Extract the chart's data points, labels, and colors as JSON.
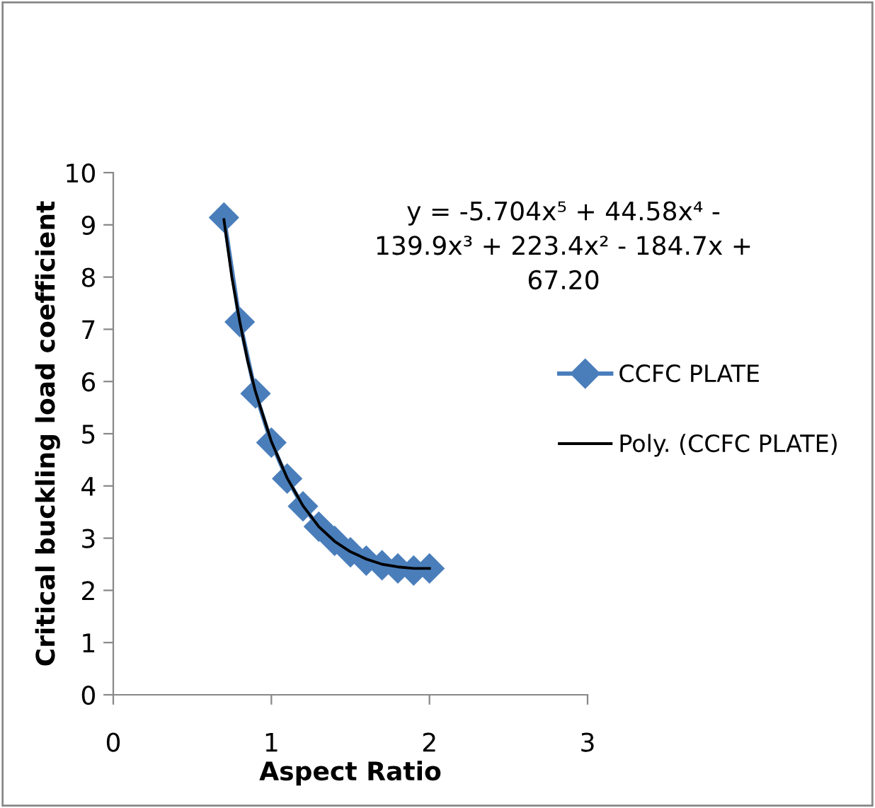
{
  "chart_data": {
    "type": "line",
    "xlabel": "Aspect Ratio",
    "ylabel": "Critical buckling load coefficient",
    "x": [
      0.7,
      0.8,
      0.9,
      1.0,
      1.1,
      1.2,
      1.3,
      1.4,
      1.5,
      1.6,
      1.7,
      1.8,
      1.9,
      2.0
    ],
    "series": [
      {
        "name": "CCFC PLATE",
        "color": "#4a7ebb",
        "marker": "diamond",
        "values": [
          9.14,
          7.14,
          5.77,
          4.83,
          4.14,
          3.61,
          3.22,
          2.95,
          2.73,
          2.57,
          2.48,
          2.42,
          2.38,
          2.42
        ]
      },
      {
        "name": "Poly. (CCFC PLATE)",
        "color": "#000000",
        "marker": "none",
        "x": [
          0.7,
          0.75,
          0.8,
          0.85,
          0.9,
          1.0,
          1.1,
          1.2,
          1.3,
          1.4,
          1.5,
          1.6,
          1.7,
          1.8,
          1.9,
          2.0
        ],
        "values": [
          9.1,
          8.0,
          7.15,
          6.4,
          5.8,
          4.85,
          4.15,
          3.62,
          3.22,
          2.94,
          2.74,
          2.6,
          2.5,
          2.45,
          2.42,
          2.42
        ]
      }
    ],
    "xlim": [
      0,
      3
    ],
    "xticks": [
      0,
      1,
      2,
      3
    ],
    "ylim": [
      0,
      10
    ],
    "yticks": [
      0,
      1,
      2,
      3,
      4,
      5,
      6,
      7,
      8,
      9,
      10
    ],
    "grid": false,
    "legend": "right",
    "annotations": [
      "y = -5.704x⁵ + 44.58x⁴ -\n139.9x³ + 223.4x² - 184.7x +\n67.20"
    ]
  }
}
